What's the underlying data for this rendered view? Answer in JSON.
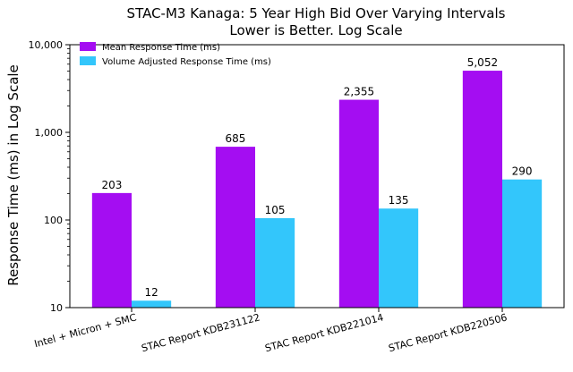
{
  "chart_data": {
    "type": "bar",
    "title_lines": [
      "STAC-M3 Kanaga: 5 Year High Bid Over Varying Intervals",
      "Lower is Better. Log Scale"
    ],
    "xlabel": "",
    "ylabel": "Response Time (ms) in Log Scale",
    "yscale": "log",
    "ylim": [
      10,
      10000
    ],
    "yticks": [
      10,
      100,
      1000,
      10000
    ],
    "ytick_labels": [
      "10",
      "100",
      "1,000",
      "10,000"
    ],
    "categories": [
      "Intel + Micron + SMC",
      "STAC Report KDB231122",
      "STAC Report KDB221014",
      "STAC Report KDB220506"
    ],
    "series": [
      {
        "name": "Mean Response Time (ms)",
        "values": [
          203,
          685,
          2355,
          5052
        ],
        "labels": [
          "203",
          "685",
          "2,355",
          "5,052"
        ],
        "color": "#a40df2"
      },
      {
        "name": "Volume Adjusted Response Time (ms)",
        "values": [
          12,
          105,
          135,
          290
        ],
        "labels": [
          "12",
          "105",
          "135",
          "290"
        ],
        "color": "#33c6fb"
      }
    ],
    "grid": false,
    "legend_position": "top-left"
  }
}
